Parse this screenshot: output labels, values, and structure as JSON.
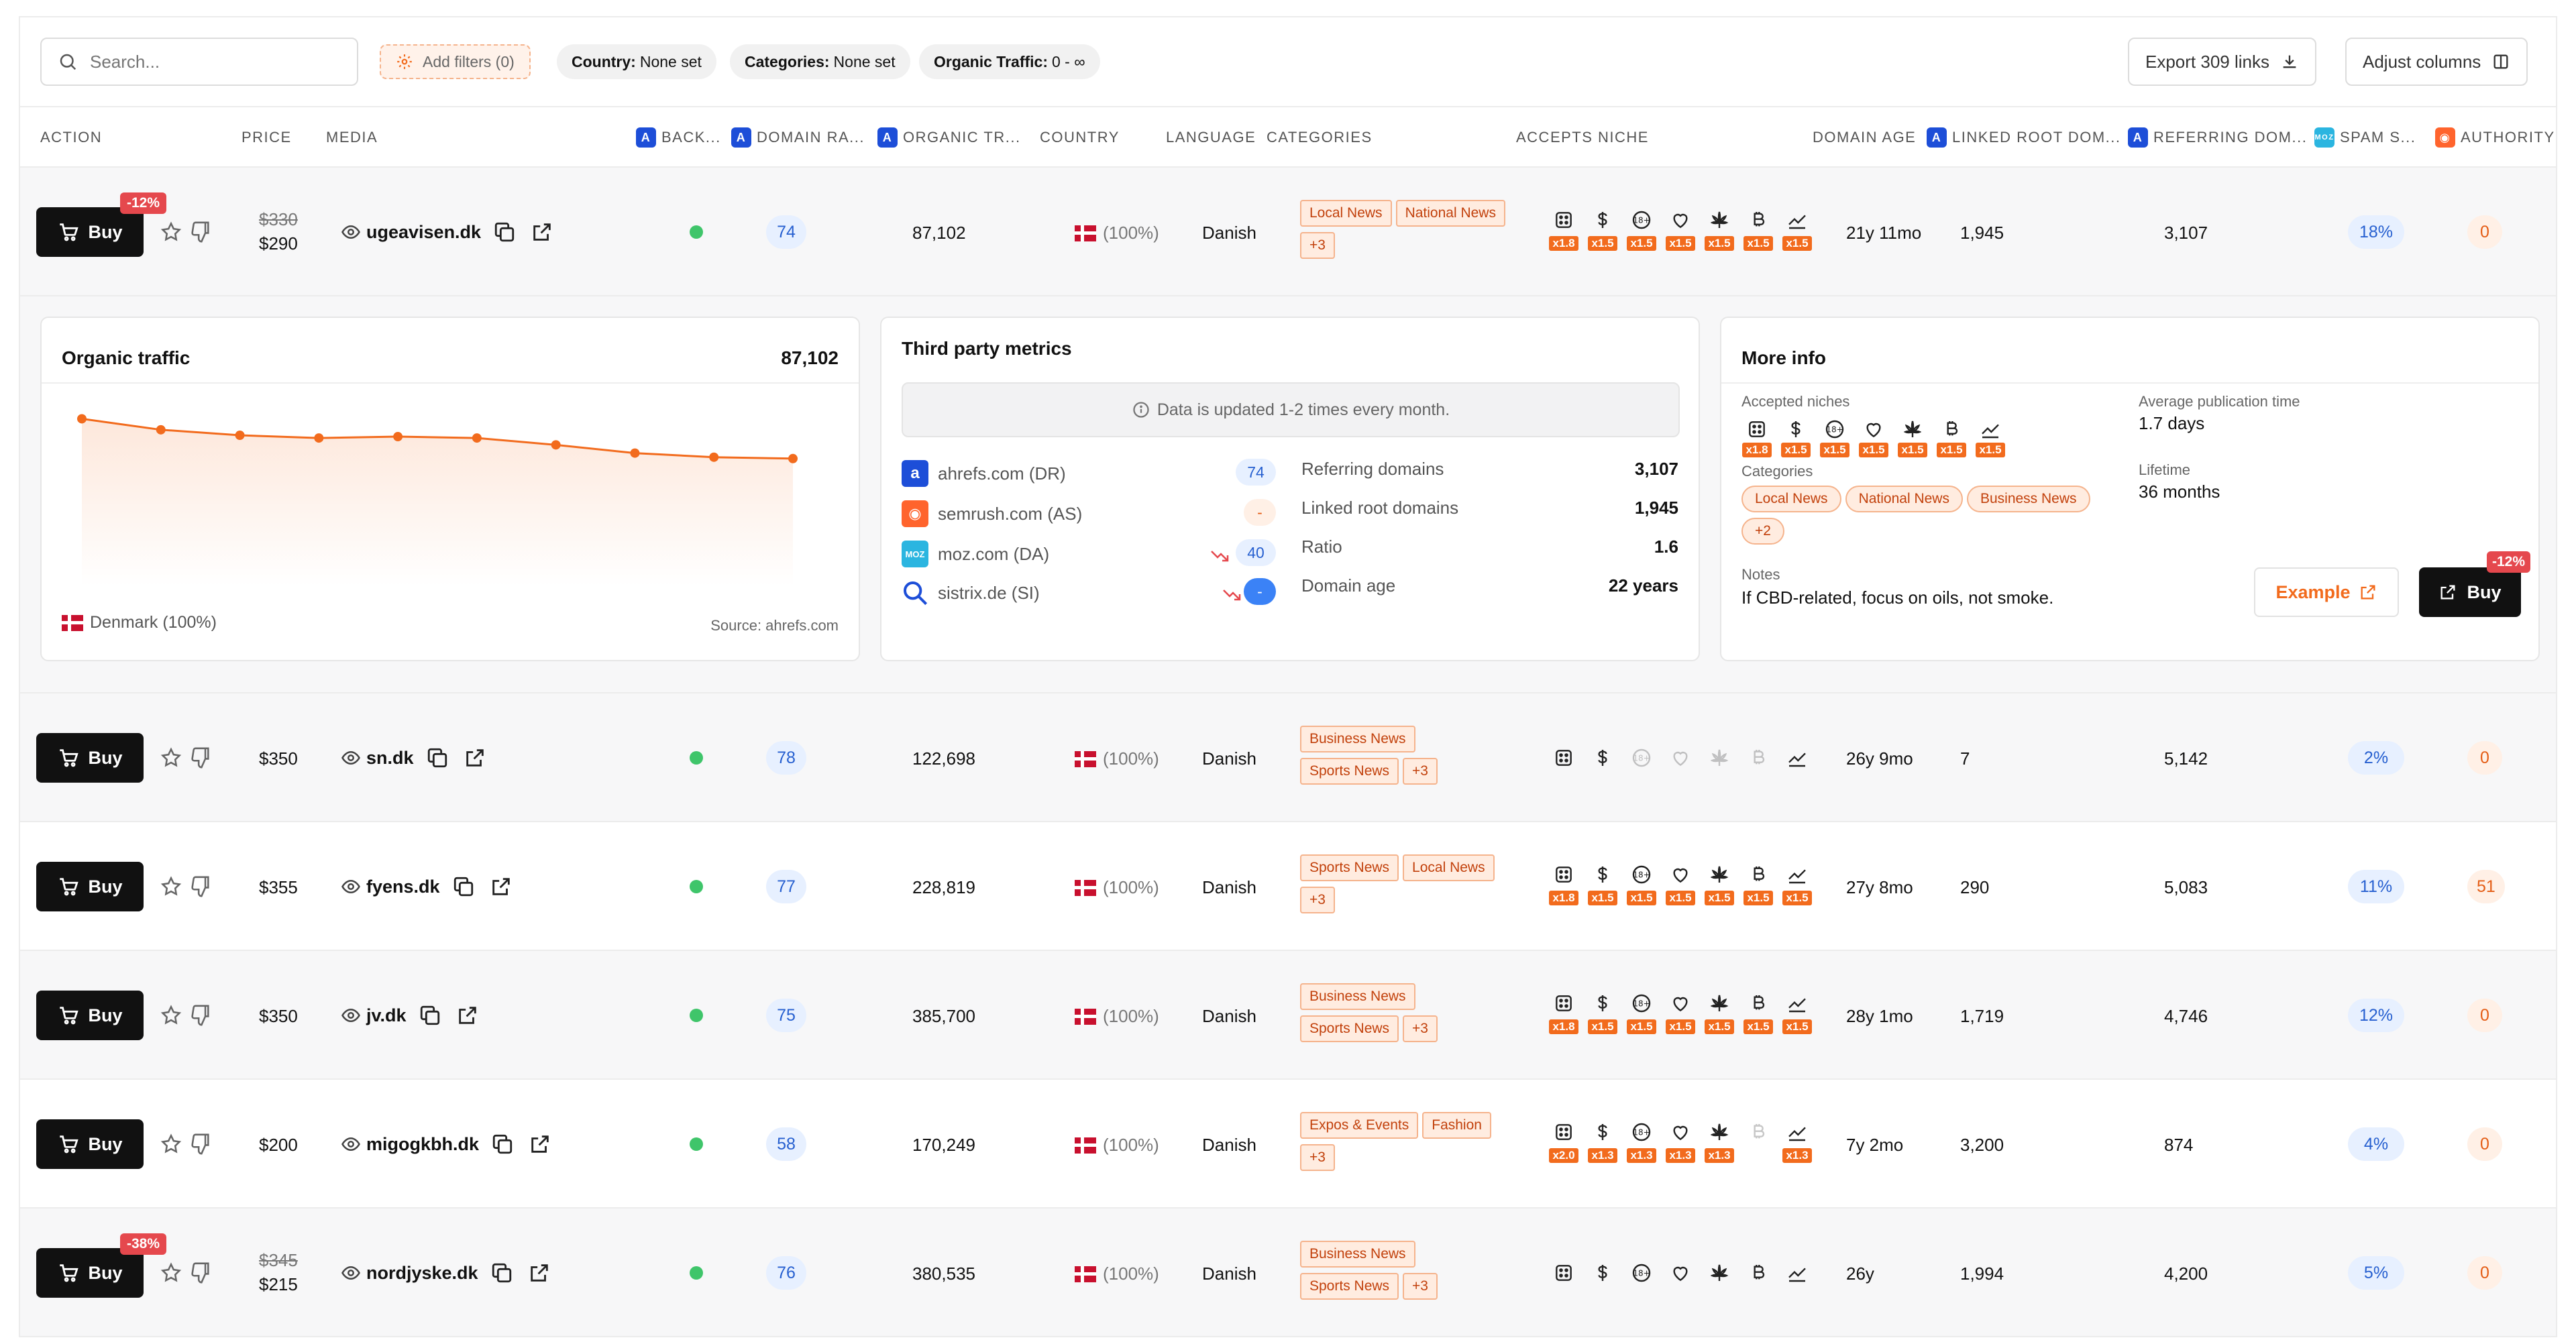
{
  "toolbar": {
    "search_placeholder": "Search...",
    "add_filters": "Add filters (0)",
    "filters": [
      {
        "key": "Country:",
        "value": "None set"
      },
      {
        "key": "Categories:",
        "value": "None set"
      },
      {
        "key": "Organic Traffic:",
        "value": "0 - ∞"
      }
    ],
    "export_label": "Export 309 links",
    "adjust_label": "Adjust columns"
  },
  "columns": {
    "action": "ACTION",
    "price": "PRICE",
    "media": "MEDIA",
    "backlinks": "BACK...",
    "domain_rating": "DOMAIN RA...",
    "organic_traffic": "ORGANIC TR...",
    "country": "COUNTRY",
    "language": "LANGUAGE",
    "categories": "CATEGORIES",
    "accepts_niche": "ACCEPTS NICHE",
    "domain_age": "DOMAIN AGE",
    "linked_root": "LINKED ROOT DOM...",
    "referring": "REFERRING DOM...",
    "spam": "SPAM S...",
    "authority": "AUTHORITY"
  },
  "buy_label": "Buy",
  "rows": [
    {
      "discount": "-12%",
      "old_price": "$330",
      "price": "$290",
      "domain": "ugeavisen.dk",
      "dr": "74",
      "traffic": "87,102",
      "country_pct": "(100%)",
      "language": "Danish",
      "tags": [
        "Local News",
        "National News",
        "+3"
      ],
      "mults": [
        "x1.8",
        "x1.5",
        "x1.5",
        "x1.5",
        "x1.5",
        "x1.5",
        "x1.5"
      ],
      "age": "21y 11mo",
      "linked": "1,945",
      "referring": "3,107",
      "spam": "18%",
      "authority": "0"
    },
    {
      "discount": "",
      "old_price": "",
      "price": "$350",
      "domain": "sn.dk",
      "dr": "78",
      "traffic": "122,698",
      "country_pct": "(100%)",
      "language": "Danish",
      "tags": [
        "Business News",
        "Sports News",
        "+3"
      ],
      "mults": [],
      "age": "26y 9mo",
      "linked": "7",
      "referring": "5,142",
      "spam": "2%",
      "authority": "0"
    },
    {
      "discount": "",
      "old_price": "",
      "price": "$355",
      "domain": "fyens.dk",
      "dr": "77",
      "traffic": "228,819",
      "country_pct": "(100%)",
      "language": "Danish",
      "tags": [
        "Sports News",
        "Local News",
        "+3"
      ],
      "mults": [
        "x1.8",
        "x1.5",
        "x1.5",
        "x1.5",
        "x1.5",
        "x1.5",
        "x1.5"
      ],
      "age": "27y 8mo",
      "linked": "290",
      "referring": "5,083",
      "spam": "11%",
      "authority": "51"
    },
    {
      "discount": "",
      "old_price": "",
      "price": "$350",
      "domain": "jv.dk",
      "dr": "75",
      "traffic": "385,700",
      "country_pct": "(100%)",
      "language": "Danish",
      "tags": [
        "Business News",
        "Sports News",
        "+3"
      ],
      "mults": [
        "x1.8",
        "x1.5",
        "x1.5",
        "x1.5",
        "x1.5",
        "x1.5",
        "x1.5"
      ],
      "age": "28y 1mo",
      "linked": "1,719",
      "referring": "4,746",
      "spam": "12%",
      "authority": "0"
    },
    {
      "discount": "",
      "old_price": "",
      "price": "$200",
      "domain": "migogkbh.dk",
      "dr": "58",
      "traffic": "170,249",
      "country_pct": "(100%)",
      "language": "Danish",
      "tags": [
        "Expos & Events",
        "Fashion",
        "+3"
      ],
      "mults": [
        "x2.0",
        "x1.3",
        "x1.3",
        "x1.3",
        "x1.3",
        "",
        "x1.3"
      ],
      "age": "7y 2mo",
      "linked": "3,200",
      "referring": "874",
      "spam": "4%",
      "authority": "0"
    },
    {
      "discount": "-38%",
      "old_price": "$345",
      "price": "$215",
      "domain": "nordjyske.dk",
      "dr": "76",
      "traffic": "380,535",
      "country_pct": "(100%)",
      "language": "Danish",
      "tags": [
        "Business News",
        "Sports News",
        "+3"
      ],
      "mults": [],
      "age": "26y",
      "linked": "1,994",
      "referring": "4,200",
      "spam": "5%",
      "authority": "0"
    }
  ],
  "expanded": {
    "organic": {
      "title": "Organic traffic",
      "value": "87,102",
      "country": "Denmark (100%)",
      "source": "Source: ahrefs.com"
    },
    "chart_data": {
      "type": "area",
      "x": [
        1,
        2,
        3,
        4,
        5,
        6,
        7,
        8,
        9,
        10
      ],
      "values": [
        100,
        92,
        88,
        86,
        87,
        86,
        81,
        75,
        72,
        71
      ],
      "ylim": [
        0,
        110
      ],
      "color": "#f26b1d",
      "grid": false
    },
    "third_party": {
      "title": "Third party metrics",
      "info": "Data is updated 1-2 times every month.",
      "metrics": [
        {
          "name": "ahrefs.com (DR)",
          "value": "74"
        },
        {
          "name": "semrush.com (AS)",
          "value": "-"
        },
        {
          "name": "moz.com (DA)",
          "value": "40"
        },
        {
          "name": "sistrix.de (SI)",
          "value": "-"
        }
      ],
      "stats": [
        {
          "label": "Referring domains",
          "value": "3,107"
        },
        {
          "label": "Linked root domains",
          "value": "1,945"
        },
        {
          "label": "Ratio",
          "value": "1.6"
        },
        {
          "label": "Domain age",
          "value": "22 years"
        }
      ]
    },
    "more_info": {
      "title": "More info",
      "accepted_label": "Accepted niches",
      "mults": [
        "x1.8",
        "x1.5",
        "x1.5",
        "x1.5",
        "x1.5",
        "x1.5",
        "x1.5"
      ],
      "categories_label": "Categories",
      "categories": [
        "Local News",
        "National News",
        "Business News",
        "+2"
      ],
      "avg_pub_label": "Average publication time",
      "avg_pub_value": "1.7 days",
      "lifetime_label": "Lifetime",
      "lifetime_value": "36 months",
      "notes_label": "Notes",
      "notes_value": "If CBD-related, focus on oils, not smoke.",
      "example_label": "Example",
      "buy_label": "Buy",
      "discount": "-12%"
    }
  }
}
